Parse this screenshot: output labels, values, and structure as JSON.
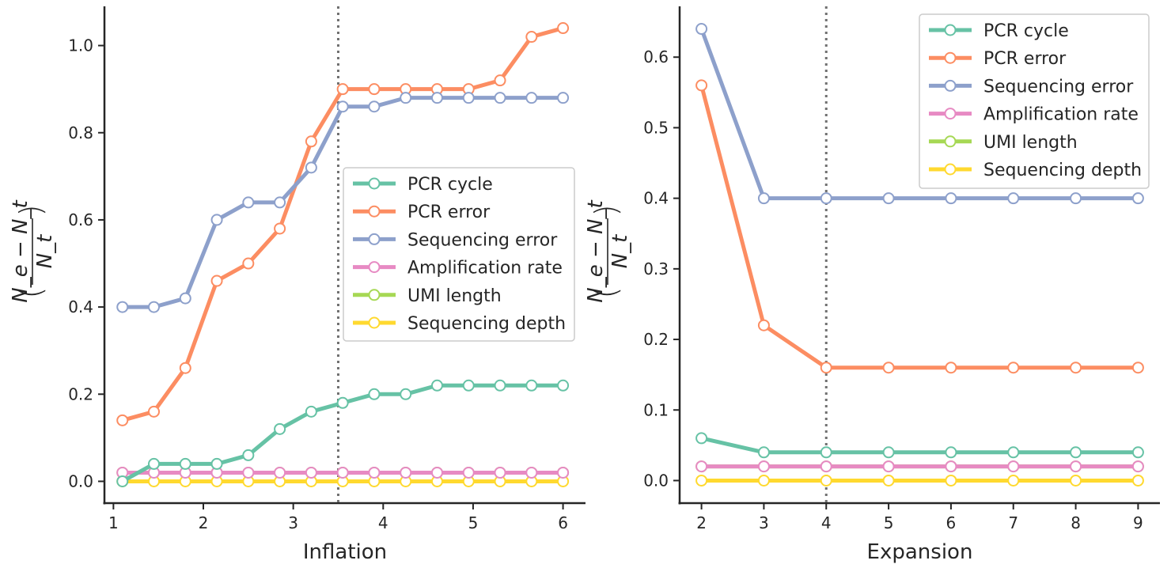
{
  "chart_data": [
    {
      "type": "line",
      "xlabel": "Inflation",
      "ylabel": {
        "numerator": "N_e − N_t",
        "denominator": "N_t",
        "open": "(",
        "close": ")"
      },
      "xlim": [
        0.9,
        6.25
      ],
      "ylim": [
        -0.05,
        1.09
      ],
      "xticks": [
        "1",
        "2",
        "3",
        "4",
        "5",
        "6"
      ],
      "yticks": [
        "0.0",
        "0.2",
        "0.4",
        "0.6",
        "0.8",
        "1.0"
      ],
      "vline": 3.5,
      "legend_position": "center-right",
      "x": [
        1.1,
        1.45,
        1.8,
        2.15,
        2.5,
        2.85,
        3.2,
        3.55,
        3.9,
        4.25,
        4.6,
        4.95,
        5.3,
        5.65,
        6.0
      ],
      "series": [
        {
          "name": "Sequencing depth",
          "color": "#ffd92f",
          "values": [
            0,
            0,
            0,
            0,
            0,
            0,
            0,
            0,
            0,
            0,
            0,
            0,
            0,
            0,
            0
          ]
        },
        {
          "name": "UMI length",
          "color": "#a6d854",
          "values": [
            0.02,
            0.02,
            0.02,
            0.02,
            0.02,
            0.02,
            0.02,
            0.02,
            0.02,
            0.02,
            0.02,
            0.02,
            0.02,
            0.02,
            0.02
          ]
        },
        {
          "name": "Amplification rate",
          "color": "#e78ac3",
          "values": [
            0.02,
            0.02,
            0.02,
            0.02,
            0.02,
            0.02,
            0.02,
            0.02,
            0.02,
            0.02,
            0.02,
            0.02,
            0.02,
            0.02,
            0.02
          ]
        },
        {
          "name": "PCR cycle",
          "color": "#66c2a5",
          "values": [
            0.0,
            0.04,
            0.04,
            0.04,
            0.06,
            0.12,
            0.16,
            0.18,
            0.2,
            0.2,
            0.22,
            0.22,
            0.22,
            0.22,
            0.22
          ]
        },
        {
          "name": "PCR error",
          "color": "#fc8d62",
          "values": [
            0.14,
            0.16,
            0.26,
            0.46,
            0.5,
            0.58,
            0.78,
            0.9,
            0.9,
            0.9,
            0.9,
            0.9,
            0.92,
            1.02,
            1.04
          ]
        },
        {
          "name": "Sequencing error",
          "color": "#8da0cb",
          "values": [
            0.4,
            0.4,
            0.42,
            0.6,
            0.64,
            0.64,
            0.72,
            0.86,
            0.86,
            0.88,
            0.88,
            0.88,
            0.88,
            0.88,
            0.88
          ]
        }
      ],
      "legend": [
        "PCR cycle",
        "PCR error",
        "Sequencing error",
        "Amplification rate",
        "UMI length",
        "Sequencing depth"
      ]
    },
    {
      "type": "line",
      "xlabel": "Expansion",
      "ylabel": {
        "numerator": "N_e − N_t",
        "denominator": "N_t",
        "open": "(",
        "close": ")"
      },
      "xlim": [
        1.65,
        9.35
      ],
      "ylim": [
        -0.032,
        0.672
      ],
      "xticks": [
        "2",
        "3",
        "4",
        "5",
        "6",
        "7",
        "8",
        "9"
      ],
      "yticks": [
        "0.0",
        "0.1",
        "0.2",
        "0.3",
        "0.4",
        "0.5",
        "0.6"
      ],
      "vline": 4,
      "legend_position": "top-right",
      "x": [
        2,
        3,
        4,
        5,
        6,
        7,
        8,
        9
      ],
      "series": [
        {
          "name": "Sequencing depth",
          "color": "#ffd92f",
          "values": [
            0,
            0,
            0,
            0,
            0,
            0,
            0,
            0
          ]
        },
        {
          "name": "UMI length",
          "color": "#a6d854",
          "values": [
            0.02,
            0.02,
            0.02,
            0.02,
            0.02,
            0.02,
            0.02,
            0.02
          ]
        },
        {
          "name": "Amplification rate",
          "color": "#e78ac3",
          "values": [
            0.02,
            0.02,
            0.02,
            0.02,
            0.02,
            0.02,
            0.02,
            0.02
          ]
        },
        {
          "name": "PCR cycle",
          "color": "#66c2a5",
          "values": [
            0.06,
            0.04,
            0.04,
            0.04,
            0.04,
            0.04,
            0.04,
            0.04
          ]
        },
        {
          "name": "PCR error",
          "color": "#fc8d62",
          "values": [
            0.56,
            0.22,
            0.16,
            0.16,
            0.16,
            0.16,
            0.16,
            0.16
          ]
        },
        {
          "name": "Sequencing error",
          "color": "#8da0cb",
          "values": [
            0.64,
            0.4,
            0.4,
            0.4,
            0.4,
            0.4,
            0.4,
            0.4
          ]
        }
      ],
      "legend": [
        "PCR cycle",
        "PCR error",
        "Sequencing error",
        "Amplification rate",
        "UMI length",
        "Sequencing depth"
      ]
    }
  ]
}
